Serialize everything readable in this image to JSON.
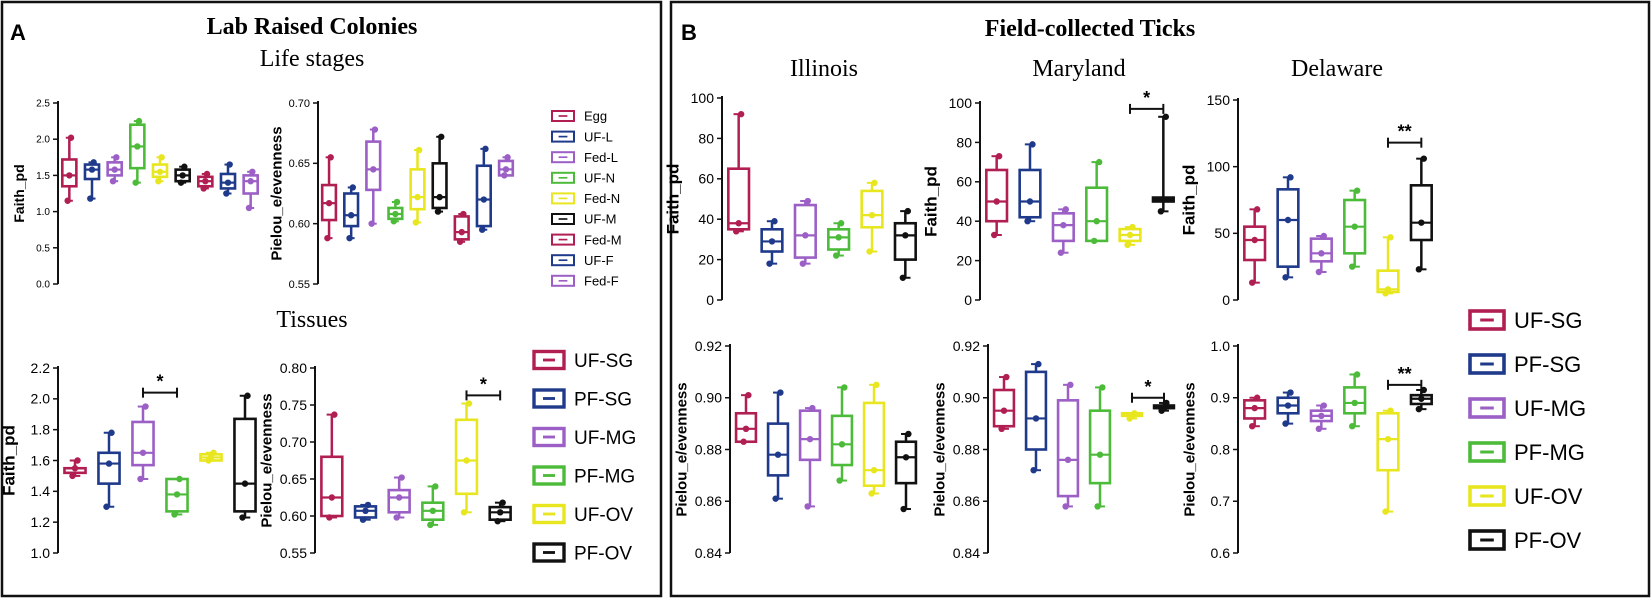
{
  "panel_a": {
    "letter": "A",
    "title": "Lab Raised Colonies",
    "section1_title": "Life stages",
    "section2_title": "Tissues",
    "legend_stages": [
      "Egg",
      "UF-L",
      "Fed-L",
      "UF-N",
      "Fed-N",
      "UF-M",
      "Fed-M",
      "UF-F",
      "Fed-F"
    ],
    "legend_tissues": [
      "UF-SG",
      "PF-SG",
      "UF-MG",
      "PF-MG",
      "UF-OV",
      "PF-OV"
    ]
  },
  "panel_b": {
    "letter": "B",
    "title": "Field-collected Ticks",
    "sites": [
      "Illinois",
      "Maryland",
      "Delaware"
    ],
    "legend": [
      "UF-SG",
      "PF-SG",
      "UF-MG",
      "PF-MG",
      "UF-OV",
      "PF-OV"
    ]
  },
  "colors": {
    "stages": [
      "#b01e52",
      "#1f3a8a",
      "#9b5fc6",
      "#4dbb3a",
      "#e8e61e",
      "#111111",
      "#b01e52",
      "#1f3a8a",
      "#9b5fc6"
    ],
    "tissues": [
      "#b01e52",
      "#1f3a8a",
      "#9b5fc6",
      "#4dbb3a",
      "#e8e61e",
      "#111111"
    ]
  },
  "chart_data": [
    {
      "id": "a_ls_faith",
      "type": "box",
      "ylabel": "Faith_pd",
      "ylim": [
        0,
        2.5
      ],
      "yticks": [
        "0.0",
        "0.5",
        "1.0",
        "1.5",
        "2.0",
        "2.5"
      ],
      "groups": [
        "Egg",
        "UF-L",
        "Fed-L",
        "UF-N",
        "Fed-N",
        "UF-M",
        "Fed-M",
        "UF-F",
        "Fed-F"
      ],
      "boxes": [
        [
          1.15,
          1.35,
          1.5,
          1.72,
          2.02
        ],
        [
          1.18,
          1.45,
          1.58,
          1.65,
          1.68
        ],
        [
          1.42,
          1.5,
          1.58,
          1.68,
          1.75
        ],
        [
          1.4,
          1.6,
          1.9,
          2.2,
          2.25
        ],
        [
          1.42,
          1.48,
          1.55,
          1.65,
          1.75
        ],
        [
          1.4,
          1.42,
          1.5,
          1.58,
          1.62
        ],
        [
          1.32,
          1.35,
          1.42,
          1.48,
          1.52
        ],
        [
          1.25,
          1.32,
          1.4,
          1.52,
          1.65
        ],
        [
          1.05,
          1.25,
          1.42,
          1.5,
          1.55
        ]
      ],
      "significance": []
    },
    {
      "id": "a_ls_pielou",
      "type": "box",
      "ylabel": "Pielou_e/evenness",
      "ylim": [
        0.55,
        0.7
      ],
      "yticks": [
        "0.55",
        "0.60",
        "0.65",
        "0.70"
      ],
      "groups": [
        "Egg",
        "UF-L",
        "Fed-L",
        "UF-N",
        "Fed-N",
        "UF-M",
        "Fed-M",
        "UF-F",
        "Fed-F"
      ],
      "boxes": [
        [
          0.588,
          0.603,
          0.617,
          0.632,
          0.655
        ],
        [
          0.588,
          0.598,
          0.607,
          0.625,
          0.63
        ],
        [
          0.6,
          0.628,
          0.645,
          0.668,
          0.678
        ],
        [
          0.602,
          0.604,
          0.608,
          0.613,
          0.618
        ],
        [
          0.601,
          0.612,
          0.622,
          0.645,
          0.661
        ],
        [
          0.61,
          0.613,
          0.622,
          0.65,
          0.672
        ],
        [
          0.585,
          0.587,
          0.593,
          0.606,
          0.608
        ],
        [
          0.595,
          0.598,
          0.62,
          0.648,
          0.662
        ],
        [
          0.64,
          0.64,
          0.645,
          0.652,
          0.655
        ]
      ],
      "significance": []
    },
    {
      "id": "a_ts_faith",
      "type": "box",
      "ylabel": "Faith_pd",
      "ylim": [
        1.0,
        2.2
      ],
      "yticks": [
        "1.0",
        "1.2",
        "1.4",
        "1.6",
        "1.8",
        "2.0",
        "2.2"
      ],
      "groups": [
        "UF-SG",
        "PF-SG",
        "UF-MG",
        "PF-MG",
        "UF-OV",
        "PF-OV"
      ],
      "boxes": [
        [
          1.5,
          1.52,
          1.55,
          1.55,
          1.6
        ],
        [
          1.3,
          1.45,
          1.58,
          1.65,
          1.78
        ],
        [
          1.48,
          1.57,
          1.65,
          1.85,
          1.95
        ],
        [
          1.25,
          1.27,
          1.38,
          1.48,
          1.48
        ],
        [
          1.6,
          1.6,
          1.62,
          1.64,
          1.65
        ],
        [
          1.23,
          1.27,
          1.45,
          1.87,
          2.02
        ]
      ],
      "significance": [
        {
          "from": 2,
          "to": 3,
          "label": "*",
          "y": 2.04
        }
      ]
    },
    {
      "id": "a_ts_pielou",
      "type": "box",
      "ylabel": "Pielou_e/evenness",
      "ylim": [
        0.55,
        0.8
      ],
      "yticks": [
        "0.55",
        "0.60",
        "0.65",
        "0.70",
        "0.75",
        "0.80"
      ],
      "groups": [
        "UF-SG",
        "PF-SG",
        "UF-MG",
        "PF-MG",
        "UF-OV",
        "PF-OV"
      ],
      "boxes": [
        [
          0.598,
          0.6,
          0.625,
          0.68,
          0.737
        ],
        [
          0.595,
          0.598,
          0.607,
          0.613,
          0.615
        ],
        [
          0.598,
          0.605,
          0.625,
          0.635,
          0.652
        ],
        [
          0.588,
          0.595,
          0.607,
          0.618,
          0.64
        ],
        [
          0.605,
          0.63,
          0.675,
          0.73,
          0.752
        ],
        [
          0.593,
          0.595,
          0.605,
          0.612,
          0.618
        ]
      ],
      "significance": [
        {
          "from": 4,
          "to": 5,
          "label": "*",
          "y": 0.763
        }
      ]
    },
    {
      "id": "b_il_faith",
      "type": "box",
      "ylabel": "Faith_pd",
      "ylim": [
        0,
        100
      ],
      "yticks": [
        "0",
        "20",
        "40",
        "60",
        "80",
        "100"
      ],
      "groups": [
        "UF-SG",
        "PF-SG",
        "UF-MG",
        "PF-MG",
        "UF-OV",
        "PF-OV"
      ],
      "boxes": [
        [
          34,
          35,
          38,
          65,
          92
        ],
        [
          18,
          24,
          29,
          35,
          39
        ],
        [
          18,
          21,
          32,
          47,
          49
        ],
        [
          22,
          25,
          31,
          35,
          38
        ],
        [
          24,
          36,
          42,
          54,
          58
        ],
        [
          11,
          20,
          32,
          38,
          44
        ]
      ],
      "significance": []
    },
    {
      "id": "b_md_faith",
      "type": "box",
      "ylabel": "Faith_pd",
      "ylim": [
        0,
        100
      ],
      "yticks": [
        "0",
        "20",
        "40",
        "60",
        "80",
        "100"
      ],
      "groups": [
        "UF-SG",
        "PF-SG",
        "UF-MG",
        "PF-MG",
        "UF-OV",
        "PF-OV"
      ],
      "boxes": [
        [
          33,
          40,
          50,
          66,
          73
        ],
        [
          40,
          42,
          50,
          66,
          79
        ],
        [
          24,
          30,
          38,
          44,
          46
        ],
        [
          30,
          30,
          40,
          57,
          70
        ],
        [
          28,
          30,
          33,
          36,
          37
        ],
        [
          45,
          50,
          51,
          52,
          93
        ]
      ],
      "significance": [
        {
          "from": 4,
          "to": 5,
          "label": "*",
          "y": 97
        }
      ]
    },
    {
      "id": "b_de_faith",
      "type": "box",
      "ylabel": "Faith_pd",
      "ylim": [
        0,
        150
      ],
      "yticks": [
        "0",
        "50",
        "100",
        "150"
      ],
      "groups": [
        "UF-SG",
        "PF-SG",
        "UF-MG",
        "PF-MG",
        "UF-OV",
        "PF-OV"
      ],
      "boxes": [
        [
          13,
          30,
          45,
          55,
          68
        ],
        [
          17,
          25,
          60,
          83,
          92
        ],
        [
          21,
          29,
          35,
          46,
          48
        ],
        [
          25,
          35,
          55,
          75,
          82
        ],
        [
          5,
          6,
          8,
          22,
          47
        ],
        [
          23,
          45,
          58,
          86,
          106
        ]
      ],
      "significance": [
        {
          "from": 4,
          "to": 5,
          "label": "**",
          "y": 118
        }
      ]
    },
    {
      "id": "b_il_pielou",
      "type": "box",
      "ylabel": "Pielou_e/evenness",
      "ylim": [
        0.84,
        0.92
      ],
      "yticks": [
        "0.84",
        "0.86",
        "0.88",
        "0.90",
        "0.92"
      ],
      "groups": [
        "UF-SG",
        "PF-SG",
        "UF-MG",
        "PF-MG",
        "UF-OV",
        "PF-OV"
      ],
      "boxes": [
        [
          0.883,
          0.883,
          0.888,
          0.894,
          0.901
        ],
        [
          0.861,
          0.87,
          0.878,
          0.89,
          0.902
        ],
        [
          0.858,
          0.876,
          0.884,
          0.895,
          0.896
        ],
        [
          0.868,
          0.874,
          0.882,
          0.893,
          0.904
        ],
        [
          0.863,
          0.866,
          0.872,
          0.898,
          0.905
        ],
        [
          0.857,
          0.867,
          0.877,
          0.883,
          0.886
        ]
      ],
      "significance": []
    },
    {
      "id": "b_md_pielou",
      "type": "box",
      "ylabel": "Pielou_e/evenness",
      "ylim": [
        0.84,
        0.92
      ],
      "yticks": [
        "0.84",
        "0.86",
        "0.88",
        "0.90",
        "0.92"
      ],
      "groups": [
        "UF-SG",
        "PF-SG",
        "UF-MG",
        "PF-MG",
        "UF-OV",
        "PF-OV"
      ],
      "boxes": [
        [
          0.888,
          0.889,
          0.895,
          0.903,
          0.908
        ],
        [
          0.872,
          0.88,
          0.892,
          0.91,
          0.913
        ],
        [
          0.858,
          0.862,
          0.876,
          0.899,
          0.905
        ],
        [
          0.858,
          0.867,
          0.878,
          0.895,
          0.904
        ],
        [
          0.892,
          0.893,
          0.893,
          0.894,
          0.894
        ],
        [
          0.895,
          0.896,
          0.896,
          0.897,
          0.898
        ]
      ],
      "significance": [
        {
          "from": 4,
          "to": 5,
          "label": "*",
          "y": 0.9
        }
      ]
    },
    {
      "id": "b_de_pielou",
      "type": "box",
      "ylabel": "Pielou_e/evenness",
      "ylim": [
        0.6,
        1.0
      ],
      "yticks": [
        "0.6",
        "0.7",
        "0.8",
        "0.9",
        "1.0"
      ],
      "groups": [
        "UF-SG",
        "PF-SG",
        "UF-MG",
        "PF-MG",
        "UF-OV",
        "PF-OV"
      ],
      "boxes": [
        [
          0.845,
          0.86,
          0.88,
          0.895,
          0.9
        ],
        [
          0.85,
          0.87,
          0.885,
          0.9,
          0.91
        ],
        [
          0.84,
          0.855,
          0.865,
          0.875,
          0.885
        ],
        [
          0.845,
          0.87,
          0.89,
          0.92,
          0.945
        ],
        [
          0.68,
          0.76,
          0.82,
          0.87,
          0.875
        ],
        [
          0.878,
          0.888,
          0.898,
          0.905,
          0.915
        ]
      ],
      "significance": [
        {
          "from": 4,
          "to": 5,
          "label": "**",
          "y": 0.925
        }
      ]
    }
  ]
}
